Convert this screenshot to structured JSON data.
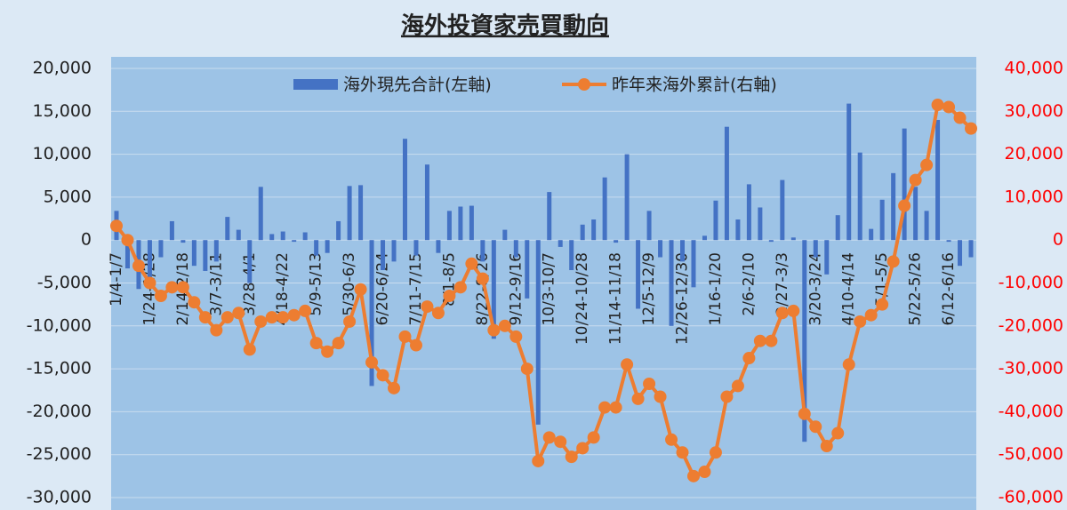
{
  "chart_data": {
    "type": "bar_line",
    "title": "海外投資家売買動向",
    "categories": [
      "1/4-1/7",
      null,
      null,
      "1/24-1/28",
      null,
      null,
      "2/14-2/18",
      null,
      null,
      "3/7-3/11",
      null,
      null,
      "3/28-4/1",
      null,
      null,
      "4/18-4/22",
      null,
      null,
      "5/9-5/13",
      null,
      null,
      "5/30-6/3",
      null,
      null,
      "6/20-6/24",
      null,
      null,
      "7/11-7/15",
      null,
      null,
      "8/1-8/5",
      null,
      null,
      "8/22-8/26",
      null,
      null,
      "9/12-9/16",
      null,
      null,
      "10/3-10/7",
      null,
      null,
      "10/24-10/28",
      null,
      null,
      "11/14-11/18",
      null,
      null,
      "12/5-12/9",
      null,
      null,
      "12/26-12/30",
      null,
      null,
      "1/16-1/20",
      null,
      null,
      "2/6-2/10",
      null,
      null,
      "2/27-3/3",
      null,
      null,
      "3/20-3/24",
      null,
      null,
      "4/10-4/14",
      null,
      null,
      "5/1-5/5",
      null,
      null,
      "5/22-5/26",
      null,
      null,
      "6/12-6/16",
      null,
      null
    ],
    "series": [
      {
        "name": "海外現先合計(左軸)",
        "color": "#4472c4",
        "type": "bar",
        "axis": "y",
        "values": [
          3400,
          -3300,
          -5700,
          -4800,
          -2000,
          2200,
          -300,
          -3000,
          -3600,
          -2500,
          2700,
          1200,
          -5000,
          6200,
          700,
          1000,
          -200,
          900,
          -1800,
          -1500,
          2200,
          6300,
          6400,
          -17000,
          -3500,
          -2500,
          11800,
          -1800,
          8800,
          -1500,
          3400,
          3900,
          4000,
          -2500,
          -11500,
          1200,
          -2000,
          -6800,
          -21500,
          5600,
          -800,
          -3500,
          1800,
          2400,
          7300,
          -300,
          10000,
          -8000,
          3400,
          -2000,
          -10000,
          -2500,
          -5500,
          500,
          4600,
          13200,
          2400,
          6500,
          3800,
          -200,
          7000,
          300,
          -23500,
          -2000,
          -4000,
          2900,
          15900,
          10200,
          1300,
          4700,
          7800,
          13000,
          6200,
          3400,
          14000,
          -200,
          -3000,
          -2000
        ]
      },
      {
        "name": "昨年来海外累計(右軸)",
        "color": "#ed7d31",
        "type": "line",
        "axis": "y2",
        "values": [
          3300,
          0,
          -6000,
          -10000,
          -13000,
          -11000,
          -11000,
          -14500,
          -18000,
          -21000,
          -18000,
          -17000,
          -25500,
          -19000,
          -18000,
          -18000,
          -17500,
          -16500,
          -24000,
          -26000,
          -24000,
          -19000,
          -11500,
          -28500,
          -31500,
          -34500,
          -22500,
          -24500,
          -15500,
          -17000,
          -13000,
          -11000,
          -5500,
          -9000,
          -21000,
          -20000,
          -22500,
          -30000,
          -51500,
          -46000,
          -47000,
          -50500,
          -48500,
          -46000,
          -39000,
          -39000,
          -29000,
          -37000,
          -33500,
          -36500,
          -46500,
          -49500,
          -55000,
          -54000,
          -49500,
          -36500,
          -34000,
          -27500,
          -23500,
          -23500,
          -17000,
          -16500,
          -40500,
          -43500,
          -48000,
          -45000,
          -29000,
          -19000,
          -17500,
          -15000,
          -5000,
          8000,
          14000,
          17500,
          31500,
          31000,
          28500,
          26000
        ]
      }
    ],
    "ylim": [
      -30000,
      20000
    ],
    "yticks": [
      {
        "value": -30000,
        "label": "-30,000"
      },
      {
        "value": -25000,
        "label": "-25,000"
      },
      {
        "value": -20000,
        "label": "-20,000"
      },
      {
        "value": -15000,
        "label": "-15,000"
      },
      {
        "value": -10000,
        "label": "-10,000"
      },
      {
        "value": -5000,
        "label": "-5,000"
      },
      0,
      {
        "value": 5000,
        "label": "5,000"
      },
      {
        "value": 10000,
        "label": "10,000"
      },
      {
        "value": 15000,
        "label": "15,000"
      },
      {
        "value": 20000,
        "label": "20,000"
      }
    ],
    "y2lim": [
      -60000,
      40000
    ],
    "y2ticks": [
      {
        "value": -60000,
        "label": "-60,000"
      },
      {
        "value": -50000,
        "label": "-50,000"
      },
      {
        "value": -40000,
        "label": "-40,000"
      },
      {
        "value": -30000,
        "label": "-30,000"
      },
      {
        "value": -20000,
        "label": "-20,000"
      },
      {
        "value": -10000,
        "label": "-10,000"
      },
      0,
      {
        "value": 10000,
        "label": "10,000"
      },
      {
        "value": 20000,
        "label": "20,000"
      },
      {
        "value": 30000,
        "label": "30,000"
      },
      {
        "value": 40000,
        "label": "40,000"
      }
    ],
    "y2_tick_color": "#ff0000",
    "grid": true,
    "legend": "top"
  }
}
